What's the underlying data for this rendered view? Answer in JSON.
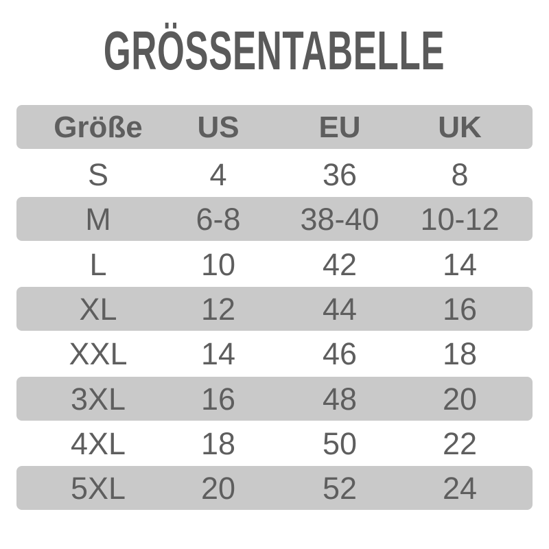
{
  "title": "GRÖSSENTABELLE",
  "colors": {
    "band": "#c9c9c9",
    "text": "#5e5e5e",
    "background": "#ffffff"
  },
  "table": {
    "headers": [
      "Größe",
      "US",
      "EU",
      "UK"
    ],
    "rows": [
      [
        "S",
        "4",
        "36",
        "8"
      ],
      [
        "M",
        "6-8",
        "38-40",
        "10-12"
      ],
      [
        "L",
        "10",
        "42",
        "14"
      ],
      [
        "XL",
        "12",
        "44",
        "16"
      ],
      [
        "XXL",
        "14",
        "46",
        "18"
      ],
      [
        "3XL",
        "16",
        "48",
        "20"
      ],
      [
        "4XL",
        "18",
        "50",
        "22"
      ],
      [
        "5XL",
        "20",
        "52",
        "24"
      ]
    ]
  }
}
